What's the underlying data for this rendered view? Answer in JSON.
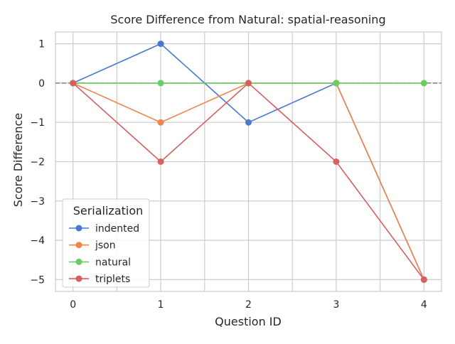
{
  "chart_data": {
    "type": "line",
    "title": "Score Difference from Natural: spatial-reasoning",
    "xlabel": "Question ID",
    "ylabel": "Score Difference",
    "x": [
      0,
      1,
      2,
      3,
      4
    ],
    "xticks": [
      "0",
      "1",
      "2",
      "3",
      "4"
    ],
    "yticks": [
      "1",
      "0",
      "−1",
      "−2",
      "−3",
      "−4",
      "−5"
    ],
    "xlim": [
      -0.2,
      4.2
    ],
    "ylim": [
      -5.3,
      1.3
    ],
    "grid": true,
    "reference_line": {
      "y": 0,
      "style": "dashed",
      "color": "#808080"
    },
    "legend": {
      "title": "Serialization",
      "placement": "lower-left"
    },
    "series": [
      {
        "name": "indented",
        "color": "#4878d0",
        "values": [
          0,
          1,
          -1,
          0,
          -5
        ]
      },
      {
        "name": "json",
        "color": "#ee854a",
        "values": [
          0,
          -1,
          0,
          0,
          -5
        ]
      },
      {
        "name": "natural",
        "color": "#6acc64",
        "values": [
          0,
          0,
          0,
          0,
          0
        ]
      },
      {
        "name": "triplets",
        "color": "#d65f5f",
        "values": [
          0,
          -2,
          0,
          -2,
          -5
        ]
      }
    ]
  }
}
